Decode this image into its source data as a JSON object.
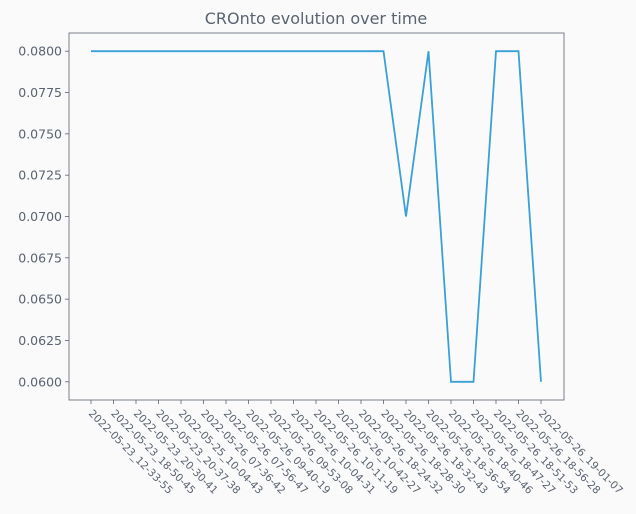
{
  "chart_data": {
    "type": "line",
    "title": "CROnto evolution over time",
    "xlabel": "",
    "ylabel": "",
    "x": [
      "2022-05-23_12-33-55",
      "2022-05-23_18-50-45",
      "2022-05-23_20-30-41",
      "2022-05-23_20-37-38",
      "2022-05-25_10-04-43",
      "2022-05-26_07-36-42",
      "2022-05-26_07-56-47",
      "2022-05-26_09-40-19",
      "2022-05-26_09-53-08",
      "2022-05-26_10-04-31",
      "2022-05-26_10-11-19",
      "2022-05-26_10-42-27",
      "2022-05-26_18-24-32",
      "2022-05-26_18-28-30",
      "2022-05-26_18-32-43",
      "2022-05-26_18-36-54",
      "2022-05-26_18-40-46",
      "2022-05-26_18-47-27",
      "2022-05-26_18-51-53",
      "2022-05-26_18-56-28",
      "2022-05-26_19-01-07"
    ],
    "series": [
      {
        "values": [
          0.08,
          0.08,
          0.08,
          0.08,
          0.08,
          0.08,
          0.08,
          0.08,
          0.08,
          0.08,
          0.08,
          0.08,
          0.08,
          0.08,
          0.07,
          0.08,
          0.06,
          0.06,
          0.08,
          0.08,
          0.06
        ],
        "color": "#3aa0d8"
      }
    ],
    "yticks": [
      "0.0600",
      "0.0625",
      "0.0650",
      "0.0675",
      "0.0700",
      "0.0725",
      "0.0750",
      "0.0775",
      "0.0800"
    ],
    "ylim": [
      0.0589,
      0.0811
    ],
    "grid": false,
    "legend": "none",
    "x_tick_rotation_deg": -45
  }
}
